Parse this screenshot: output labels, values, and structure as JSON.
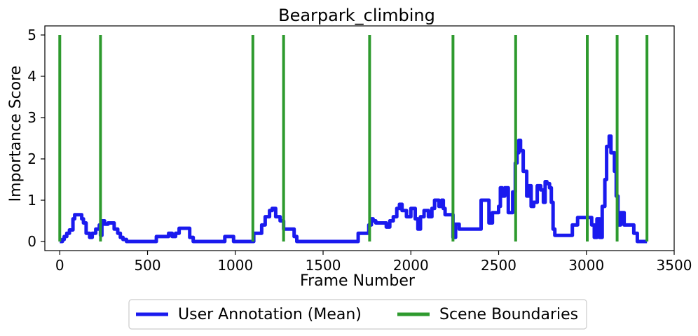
{
  "chart_data": {
    "type": "line",
    "title": "Bearpark_climbing",
    "xlabel": "Frame Number",
    "ylabel": "Importance Score",
    "xlim": [
      -85,
      3500
    ],
    "ylim": [
      -0.22,
      5.22
    ],
    "xticks": [
      0,
      500,
      1000,
      1500,
      2000,
      2500,
      3000,
      3500
    ],
    "yticks": [
      0,
      1,
      2,
      3,
      4,
      5
    ],
    "grid": false,
    "legend": {
      "placement": "bottom-center",
      "entries": [
        "User Annotation (Mean)",
        "Scene Boundaries"
      ]
    },
    "colors": {
      "annotation": "#1a1aee",
      "boundary": "#2e9a2e"
    },
    "series": [
      {
        "name": "User Annotation (Mean)",
        "kind": "step",
        "points": [
          [
            0,
            0
          ],
          [
            15,
            0.05
          ],
          [
            25,
            0.12
          ],
          [
            40,
            0.2
          ],
          [
            55,
            0.28
          ],
          [
            75,
            0.55
          ],
          [
            85,
            0.65
          ],
          [
            125,
            0.55
          ],
          [
            135,
            0.45
          ],
          [
            150,
            0.2
          ],
          [
            170,
            0.1
          ],
          [
            185,
            0.2
          ],
          [
            205,
            0.3
          ],
          [
            225,
            0.4
          ],
          [
            232,
            0.15
          ],
          [
            240,
            0.5
          ],
          [
            255,
            0.42
          ],
          [
            275,
            0.45
          ],
          [
            310,
            0.3
          ],
          [
            330,
            0.2
          ],
          [
            345,
            0.1
          ],
          [
            360,
            0.05
          ],
          [
            380,
            0
          ],
          [
            550,
            0.12
          ],
          [
            620,
            0.2
          ],
          [
            640,
            0.12
          ],
          [
            660,
            0.2
          ],
          [
            680,
            0.32
          ],
          [
            740,
            0.1
          ],
          [
            760,
            0
          ],
          [
            940,
            0.12
          ],
          [
            990,
            0
          ],
          [
            1105,
            0.2
          ],
          [
            1150,
            0.4
          ],
          [
            1170,
            0.6
          ],
          [
            1195,
            0.75
          ],
          [
            1210,
            0.8
          ],
          [
            1230,
            0.6
          ],
          [
            1255,
            0.5
          ],
          [
            1275,
            0.3
          ],
          [
            1335,
            0.12
          ],
          [
            1350,
            0
          ],
          [
            1700,
            0.2
          ],
          [
            1760,
            0.4
          ],
          [
            1775,
            0.55
          ],
          [
            1785,
            0.5
          ],
          [
            1800,
            0.45
          ],
          [
            1860,
            0.35
          ],
          [
            1880,
            0.5
          ],
          [
            1900,
            0.6
          ],
          [
            1920,
            0.8
          ],
          [
            1935,
            0.9
          ],
          [
            1950,
            0.75
          ],
          [
            1975,
            0.6
          ],
          [
            2000,
            0.8
          ],
          [
            2025,
            0.55
          ],
          [
            2040,
            0.3
          ],
          [
            2055,
            0.6
          ],
          [
            2075,
            0.75
          ],
          [
            2100,
            0.6
          ],
          [
            2120,
            0.8
          ],
          [
            2135,
            1.0
          ],
          [
            2160,
            0.85
          ],
          [
            2175,
            1.0
          ],
          [
            2185,
            0.8
          ],
          [
            2195,
            0.65
          ],
          [
            2240,
            0.1
          ],
          [
            2255,
            0.42
          ],
          [
            2275,
            0.3
          ],
          [
            2360,
            0.3
          ],
          [
            2400,
            1.0
          ],
          [
            2440,
            1.0
          ],
          [
            2445,
            0.45
          ],
          [
            2465,
            0.7
          ],
          [
            2500,
            0.85
          ],
          [
            2510,
            1.3
          ],
          [
            2520,
            1.1
          ],
          [
            2535,
            1.3
          ],
          [
            2555,
            0.7
          ],
          [
            2580,
            1.2
          ],
          [
            2595,
            1.9
          ],
          [
            2605,
            2.15
          ],
          [
            2615,
            2.45
          ],
          [
            2625,
            2.2
          ],
          [
            2640,
            1.7
          ],
          [
            2660,
            1.1
          ],
          [
            2675,
            1.35
          ],
          [
            2685,
            0.85
          ],
          [
            2700,
            0.95
          ],
          [
            2720,
            1.35
          ],
          [
            2740,
            1.25
          ],
          [
            2755,
            0.95
          ],
          [
            2765,
            1.45
          ],
          [
            2775,
            1.4
          ],
          [
            2790,
            1.3
          ],
          [
            2800,
            0.95
          ],
          [
            2810,
            0.3
          ],
          [
            2820,
            0.15
          ],
          [
            2900,
            0.15
          ],
          [
            2920,
            0.4
          ],
          [
            2950,
            0.58
          ],
          [
            3000,
            0.58
          ],
          [
            3030,
            0.4
          ],
          [
            3045,
            0.1
          ],
          [
            3060,
            0.55
          ],
          [
            3075,
            0.1
          ],
          [
            3090,
            0.85
          ],
          [
            3105,
            1.5
          ],
          [
            3115,
            2.3
          ],
          [
            3130,
            2.55
          ],
          [
            3140,
            2.15
          ],
          [
            3160,
            1.7
          ],
          [
            3170,
            1.1
          ],
          [
            3180,
            0.4
          ],
          [
            3195,
            0.7
          ],
          [
            3215,
            0.4
          ],
          [
            3270,
            0.2
          ],
          [
            3290,
            0
          ],
          [
            3345,
            0
          ]
        ]
      },
      {
        "name": "Scene Boundaries",
        "kind": "vlines",
        "x": [
          0,
          232,
          1100,
          1275,
          1765,
          2240,
          2597,
          3005,
          3175,
          3345
        ],
        "y_range": [
          0,
          5
        ]
      }
    ]
  }
}
